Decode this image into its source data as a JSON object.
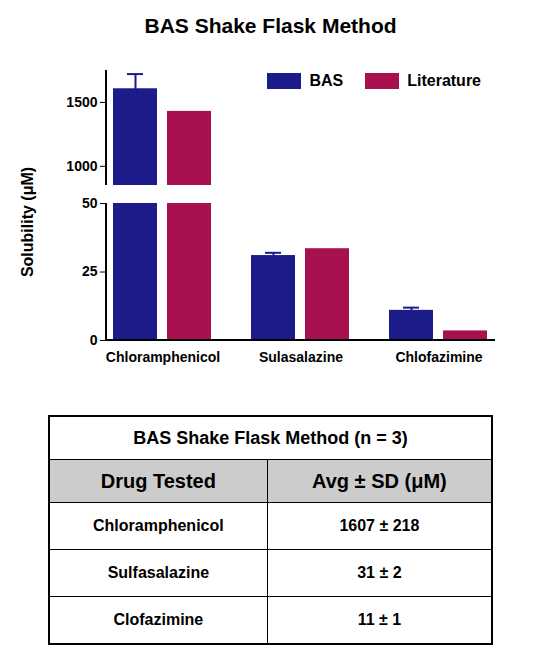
{
  "chart_data": {
    "type": "bar",
    "title": "BAS Shake Flask Method",
    "y_label": "Solubility (μM)",
    "categories": [
      "Chloramphenicol",
      "Sulasalazine",
      "Chlofazimine"
    ],
    "series": [
      {
        "name": "BAS",
        "color": "#1b1b8a",
        "values": [
          1607,
          31,
          11
        ],
        "errors": [
          115,
          1,
          1
        ]
      },
      {
        "name": "Literature",
        "color": "#a8114f",
        "values": [
          1430,
          33.5,
          3.5
        ]
      }
    ],
    "y_segments": [
      {
        "ylim": [
          850,
          1750
        ],
        "yticks": [
          1000,
          1500
        ]
      },
      {
        "ylim": [
          0,
          50
        ],
        "yticks": [
          0,
          25,
          50
        ]
      }
    ],
    "legend": "top-right"
  },
  "table": {
    "title": "BAS Shake Flask Method (n = 3)",
    "header": [
      "Drug Tested",
      "Avg ± SD (μM)"
    ],
    "rows": [
      [
        "Chloramphenicol",
        "1607 ± 218"
      ],
      [
        "Sulfasalazine",
        "31 ± 2"
      ],
      [
        "Clofazimine",
        "11 ± 1"
      ]
    ]
  }
}
